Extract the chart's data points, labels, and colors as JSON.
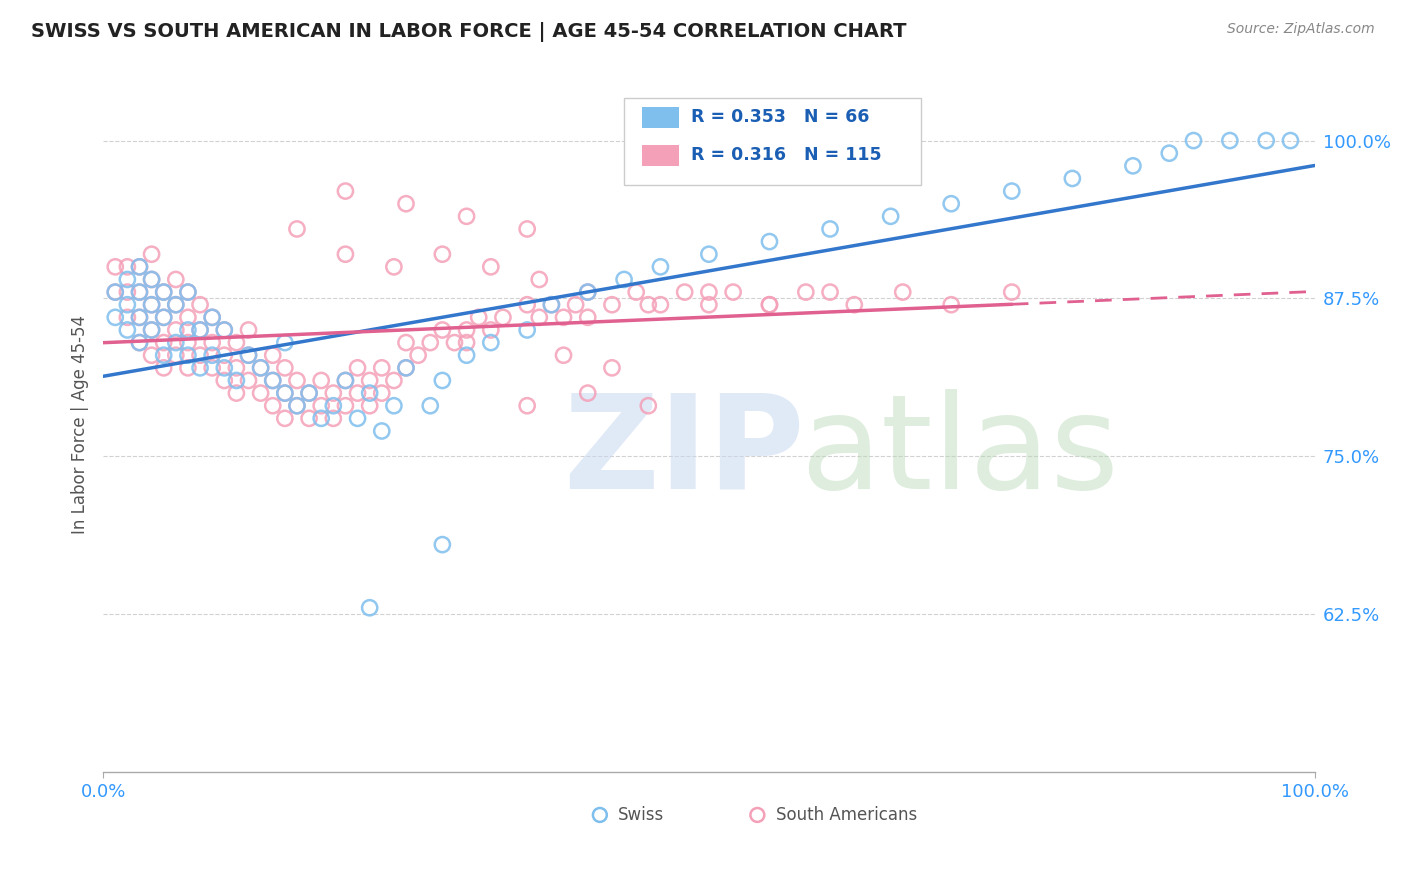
{
  "title": "SWISS VS SOUTH AMERICAN IN LABOR FORCE | AGE 45-54 CORRELATION CHART",
  "source": "Source: ZipAtlas.com",
  "ylabel": "In Labor Force | Age 45-54",
  "swiss_R": 0.353,
  "swiss_N": 66,
  "sa_R": 0.316,
  "sa_N": 115,
  "swiss_color": "#7fbfee",
  "sa_color": "#f4a0b8",
  "swiss_line_color": "#3377cc",
  "sa_line_color": "#e06090",
  "ytick_color": "#3399ff",
  "xtick_color": "#3399ff",
  "legend_swiss": "Swiss",
  "legend_sa": "South Americans",
  "xlim": [
    0.0,
    1.0
  ],
  "ylim": [
    0.5,
    1.05
  ],
  "yticks": [
    0.625,
    0.75,
    0.875,
    1.0
  ],
  "ytick_labels": [
    "62.5%",
    "75.0%",
    "87.5%",
    "100.0%"
  ],
  "grid_color": "#cccccc",
  "bg_color": "#ffffff",
  "title_color": "#222222",
  "source_color": "#888888",
  "ylabel_color": "#555555",
  "legend_box_color": "#dddddd",
  "watermark_zip_color": "#c8d8ef",
  "watermark_atlas_color": "#b8d8b8"
}
